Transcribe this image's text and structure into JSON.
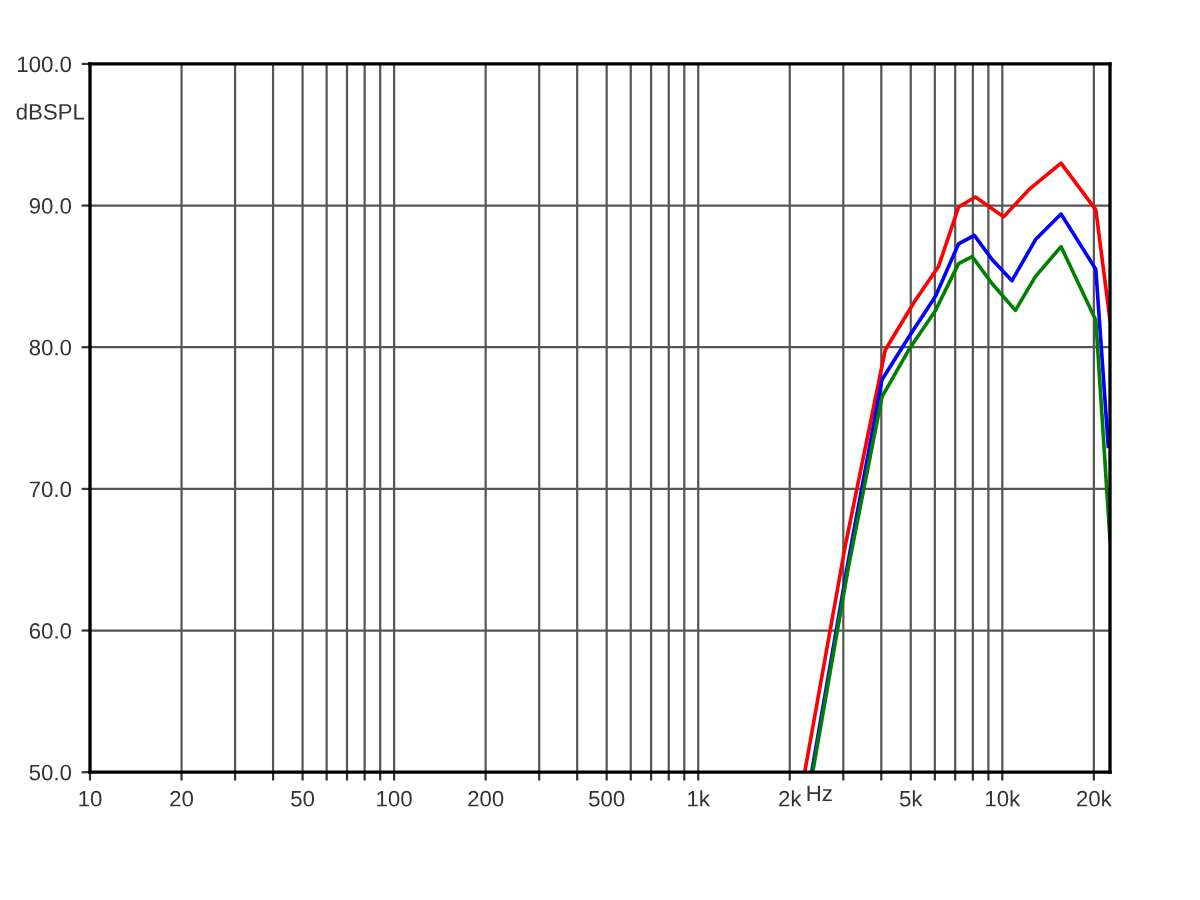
{
  "chart_data": {
    "type": "line",
    "xlabel": "Hz",
    "ylabel": "dBSPL",
    "log": "x",
    "grid": true,
    "xlim": [
      10,
      22600
    ],
    "ylim": [
      50,
      100
    ],
    "xticks": [
      10,
      20,
      {
        "value": 30,
        "label": null
      },
      {
        "value": 40,
        "label": null
      },
      50,
      {
        "value": 60,
        "label": null
      },
      {
        "value": 70,
        "label": null
      },
      {
        "value": 80,
        "label": null
      },
      {
        "value": 90,
        "label": null
      },
      100,
      200,
      {
        "value": 300,
        "label": null
      },
      {
        "value": 400,
        "label": null
      },
      500,
      {
        "value": 600,
        "label": null
      },
      {
        "value": 700,
        "label": null
      },
      {
        "value": 800,
        "label": null
      },
      {
        "value": 900,
        "label": null
      },
      {
        "value": 1000,
        "label": "1k"
      },
      {
        "value": 2000,
        "label": "2k"
      },
      {
        "value": 3000,
        "label": null
      },
      {
        "value": 4000,
        "label": null
      },
      {
        "value": 5000,
        "label": "5k"
      },
      {
        "value": 6000,
        "label": null
      },
      {
        "value": 7000,
        "label": null
      },
      {
        "value": 8000,
        "label": null
      },
      {
        "value": 9000,
        "label": null
      },
      {
        "value": 10000,
        "label": "10k"
      },
      {
        "value": 20000,
        "label": "20k"
      }
    ],
    "yticks": [
      {
        "value": 50,
        "label": "50.0"
      },
      {
        "value": 60,
        "label": "60.0"
      },
      {
        "value": 70,
        "label": "70.0"
      },
      {
        "value": 80,
        "label": "80.0"
      },
      {
        "value": 90,
        "label": "90.0"
      },
      {
        "value": 100,
        "label": "100.0"
      }
    ],
    "series": [
      {
        "color": "#ff0000",
        "x": [
          2240,
          3040,
          4120,
          5170,
          6170,
          7180,
          8160,
          10100,
          12200,
          15600,
          20300,
          22600
        ],
        "values": [
          50,
          65.9,
          79.8,
          83.3,
          85.7,
          89.9,
          90.6,
          89.2,
          91.1,
          93.0,
          89.7,
          81.9
        ]
      },
      {
        "color": "#0000ff",
        "x": [
          2360,
          3120,
          4020,
          4920,
          6030,
          7180,
          8090,
          9250,
          10760,
          12860,
          15600,
          20300,
          22300
        ],
        "values": [
          50,
          65.0,
          77.7,
          80.7,
          83.6,
          87.3,
          87.9,
          86.2,
          84.7,
          87.6,
          89.4,
          85.5,
          73.0
        ]
      },
      {
        "color": "#008000",
        "x": [
          2380,
          3120,
          4020,
          4920,
          6030,
          7180,
          7960,
          9250,
          11040,
          12860,
          15600,
          20300,
          22600
        ],
        "values": [
          50,
          64.5,
          76.5,
          79.8,
          82.6,
          85.9,
          86.4,
          84.5,
          82.6,
          85.0,
          87.1,
          81.9,
          66.4
        ]
      }
    ]
  }
}
